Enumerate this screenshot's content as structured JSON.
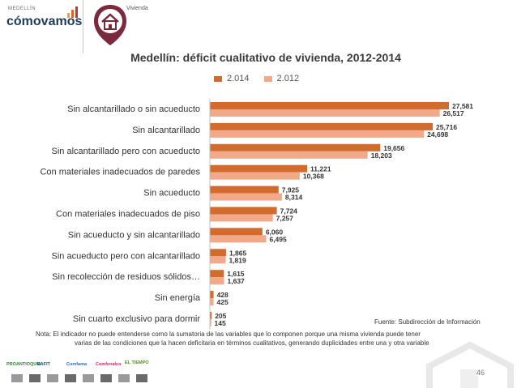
{
  "header": {
    "logo_small": "MEDELLÍN",
    "logo_main": "cómovamos",
    "section": "Vivienda"
  },
  "colors": {
    "series_2014": "#d26b2e",
    "series_2012": "#f2a98a",
    "brand": "#7a2a3c"
  },
  "chart_data": {
    "type": "bar",
    "orientation": "horizontal",
    "title": "Medellín: déficit cualitativo de vivienda, 2012-2014",
    "categories": [
      "Sin alcantarillado o sin acueducto",
      "Sin alcantarillado",
      "Sin alcantarillado pero con acueducto",
      "Con materiales inadecuados de paredes",
      "Sin acueducto",
      "Con materiales inadecuados de piso",
      "Sin acueducto y sin alcantarillado",
      "Sin acueducto pero con alcantarillado",
      "Sin recolección de residuos sólidos…",
      "Sin energía",
      "Sin cuarto exclusivo para dormir"
    ],
    "series": [
      {
        "name": "2.014",
        "values": [
          27581,
          25716,
          19656,
          11221,
          7925,
          7724,
          6060,
          1865,
          1615,
          428,
          205
        ],
        "labels": [
          "27,581",
          "25,716",
          "19,656",
          "11,221",
          "7,925",
          "7,724",
          "6,060",
          "1,865",
          "1,615",
          "428",
          "205"
        ]
      },
      {
        "name": "2.012",
        "values": [
          26517,
          24698,
          18203,
          10368,
          8314,
          7257,
          6495,
          1819,
          1637,
          425,
          145
        ],
        "labels": [
          "26,517",
          "24,698",
          "18,203",
          "10,368",
          "8,314",
          "7,257",
          "6,495",
          "1,819",
          "1,637",
          "425",
          "145"
        ]
      }
    ],
    "xlim": [
      0,
      27581
    ],
    "legend": "top-center"
  },
  "source": "Fuente: Subdirección de Información",
  "note_line1": "Nota: El indicador no puede entenderse como la sumatoria de las variables que lo componen porque una misma vivienda puede tener",
  "note_line2": "varias de las condiciones que la hacen deficitaria en términos cualitativos, generando duplicidades entre una y otra variable",
  "sponsors": [
    "PROANTIOQUIA",
    "EAFIT",
    "Comfama",
    "Comfenalco",
    "EL TIEMPO"
  ],
  "page_number": "46"
}
